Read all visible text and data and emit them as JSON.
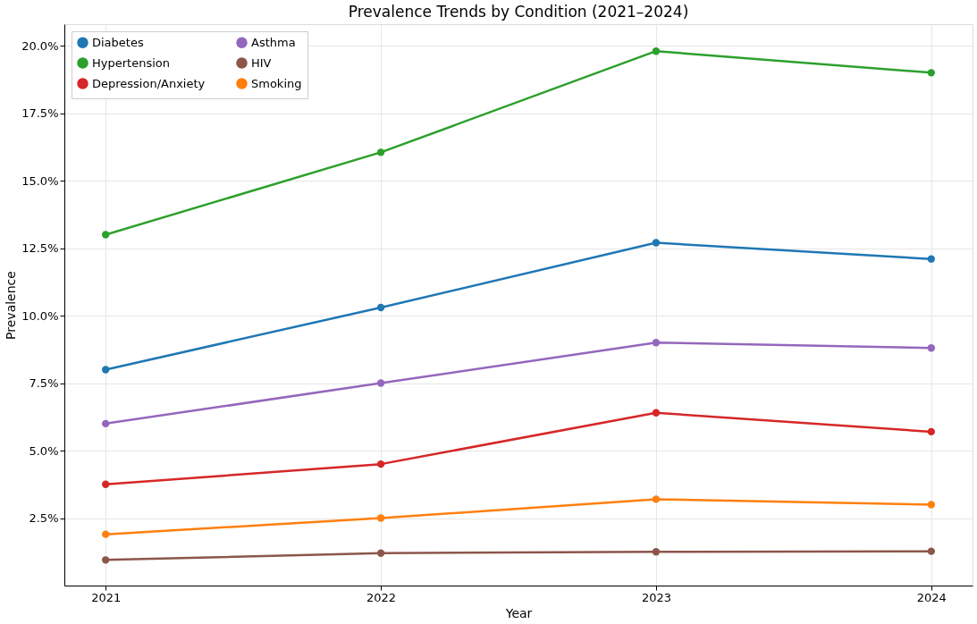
{
  "chart_data": {
    "type": "line",
    "title": "Prevalence Trends by Condition (2021–2024)",
    "xlabel": "Year",
    "ylabel": "Prevalence",
    "x": [
      2021,
      2022,
      2023,
      2024
    ],
    "series": [
      {
        "name": "Diabetes",
        "color": "#1f77b4",
        "values": [
          8.0,
          10.3,
          12.7,
          12.1
        ]
      },
      {
        "name": "Hypertension",
        "color": "#2ca02c",
        "values": [
          13.0,
          16.05,
          19.8,
          19.0
        ]
      },
      {
        "name": "Depression/Anxiety",
        "color": "#d62728",
        "values": [
          3.75,
          4.5,
          6.4,
          5.7
        ]
      },
      {
        "name": "Asthma",
        "color": "#9467bd",
        "values": [
          6.0,
          7.5,
          9.0,
          8.8
        ]
      },
      {
        "name": "HIV",
        "color": "#8c564b",
        "values": [
          0.95,
          1.2,
          1.25,
          1.27
        ]
      },
      {
        "name": "Smoking",
        "color": "#ff7f0e",
        "values": [
          1.9,
          2.5,
          3.2,
          3.0
        ]
      }
    ],
    "xlim": [
      2020.85,
      2024.15
    ],
    "xticks": [
      2021,
      2022,
      2023,
      2024
    ],
    "ylim": [
      0,
      20.8
    ],
    "yticks": [
      {
        "value": 2.5,
        "label": "2.5%"
      },
      {
        "value": 5,
        "label": "5.0%"
      },
      {
        "value": 7.5,
        "label": "7.5%"
      },
      {
        "value": 10,
        "label": "10.0%"
      },
      {
        "value": 12.5,
        "label": "12.5%"
      },
      {
        "value": 15,
        "label": "15.0%"
      },
      {
        "value": 17.5,
        "label": "17.5%"
      },
      {
        "value": 20,
        "label": "20.0%"
      }
    ],
    "grid": true,
    "legend": "top left",
    "marker": "circle",
    "line_style": "solid"
  }
}
